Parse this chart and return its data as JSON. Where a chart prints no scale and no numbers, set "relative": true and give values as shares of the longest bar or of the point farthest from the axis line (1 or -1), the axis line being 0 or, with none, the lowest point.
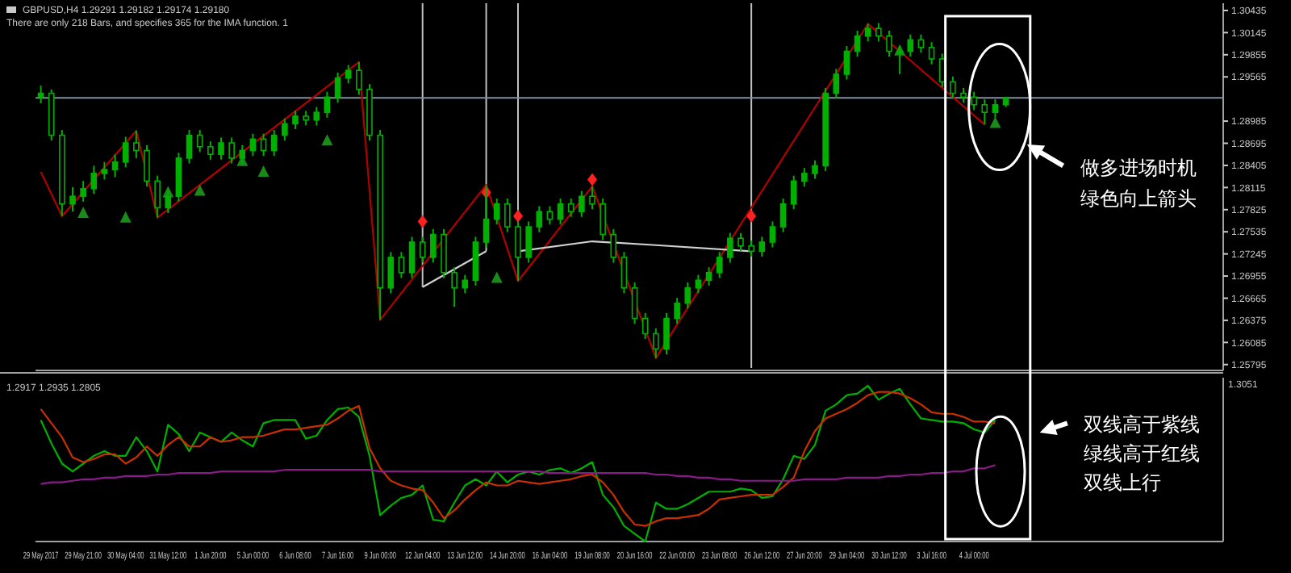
{
  "chart_data": [
    {
      "type": "candlestick",
      "color": "#00b000",
      "annotations": [
        "GBPUSD,H4 1.29291 1.29182 1.29174 1.29180",
        "There are only 218 Bars, and specifies 365 for the IMA function. 1",
        "做多进场时机",
        "绿色向上箭头"
      ],
      "categories": [
        null,
        null,
        null,
        null,
        null,
        null,
        null,
        null,
        null,
        null,
        null,
        null,
        null,
        null,
        null,
        null,
        null,
        null,
        null,
        null,
        null,
        null,
        null,
        null,
        null,
        null,
        null,
        null,
        null,
        null,
        null,
        null,
        null,
        null,
        null,
        null,
        null,
        null,
        null,
        null,
        null,
        null,
        null,
        null,
        null,
        null,
        null,
        null,
        null,
        null,
        null,
        null,
        null,
        null,
        null,
        null,
        null,
        null,
        null,
        null,
        null,
        null,
        null,
        null,
        null,
        null,
        null,
        null,
        null,
        null,
        null,
        null,
        null,
        null,
        null,
        null,
        null,
        null,
        null,
        null,
        null,
        null,
        null,
        null,
        null,
        null,
        null,
        null,
        null,
        null,
        null,
        null,
        null,
        null,
        null,
        null,
        null,
        null,
        null,
        null,
        null,
        null,
        null,
        null,
        null,
        null,
        null,
        null,
        null,
        null,
        null,
        null
      ],
      "ohlc": [
        [
          1.293,
          1.2945,
          1.2922,
          1.2935
        ],
        [
          1.2935,
          1.294,
          1.2873,
          1.288
        ],
        [
          1.288,
          1.2887,
          1.2774,
          1.279
        ],
        [
          1.279,
          1.2812,
          1.278,
          1.28
        ],
        [
          1.28,
          1.282,
          1.2793,
          1.281
        ],
        [
          1.281,
          1.284,
          1.2803,
          1.283
        ],
        [
          1.283,
          1.2845,
          1.2822,
          1.2835
        ],
        [
          1.2835,
          1.2855,
          1.2825,
          1.2845
        ],
        [
          1.2845,
          1.2878,
          1.2838,
          1.287
        ],
        [
          1.287,
          1.2886,
          1.285,
          1.286
        ],
        [
          1.286,
          1.2867,
          1.2813,
          1.282
        ],
        [
          1.282,
          1.2827,
          1.2772,
          1.2785
        ],
        [
          1.2785,
          1.2808,
          1.2778,
          1.28
        ],
        [
          1.28,
          1.2857,
          1.2793,
          1.285
        ],
        [
          1.285,
          1.2887,
          1.2843,
          1.288
        ],
        [
          1.288,
          1.2887,
          1.2858,
          1.2865
        ],
        [
          1.2865,
          1.2872,
          1.2848,
          1.2855
        ],
        [
          1.2855,
          1.2877,
          1.2848,
          1.287
        ],
        [
          1.287,
          1.2877,
          1.2843,
          1.285
        ],
        [
          1.285,
          1.2867,
          1.2843,
          1.286
        ],
        [
          1.286,
          1.2882,
          1.2853,
          1.2875
        ],
        [
          1.2875,
          1.2882,
          1.2853,
          1.286
        ],
        [
          1.286,
          1.2887,
          1.2853,
          1.288
        ],
        [
          1.288,
          1.2902,
          1.2873,
          1.2895
        ],
        [
          1.2895,
          1.2912,
          1.2888,
          1.2905
        ],
        [
          1.2905,
          1.2912,
          1.2893,
          1.29
        ],
        [
          1.29,
          1.2917,
          1.2893,
          1.291
        ],
        [
          1.291,
          1.2937,
          1.2903,
          1.293
        ],
        [
          1.293,
          1.2962,
          1.2923,
          1.2955
        ],
        [
          1.2955,
          1.2972,
          1.2948,
          1.2965
        ],
        [
          1.2965,
          1.2976,
          1.2933,
          1.294
        ],
        [
          1.294,
          1.2947,
          1.2873,
          1.288
        ],
        [
          1.288,
          1.2887,
          1.2638,
          1.268
        ],
        [
          1.268,
          1.2727,
          1.2673,
          1.272
        ],
        [
          1.272,
          1.2727,
          1.2693,
          1.27
        ],
        [
          1.27,
          1.2747,
          1.2693,
          1.274
        ],
        [
          1.274,
          1.2747,
          1.2713,
          1.272
        ],
        [
          1.272,
          1.2757,
          1.2713,
          1.275
        ],
        [
          1.275,
          1.2757,
          1.2693,
          1.27
        ],
        [
          1.27,
          1.2707,
          1.2655,
          1.268
        ],
        [
          1.268,
          1.2697,
          1.2673,
          1.269
        ],
        [
          1.269,
          1.2747,
          1.2683,
          1.274
        ],
        [
          1.274,
          1.2815,
          1.2733,
          1.277
        ],
        [
          1.277,
          1.2797,
          1.2763,
          1.279
        ],
        [
          1.279,
          1.2797,
          1.2753,
          1.276
        ],
        [
          1.276,
          1.2767,
          1.2689,
          1.272
        ],
        [
          1.272,
          1.2767,
          1.2713,
          1.276
        ],
        [
          1.276,
          1.2787,
          1.2753,
          1.278
        ],
        [
          1.278,
          1.2787,
          1.2763,
          1.277
        ],
        [
          1.277,
          1.2797,
          1.2763,
          1.279
        ],
        [
          1.279,
          1.2797,
          1.2773,
          1.278
        ],
        [
          1.278,
          1.2807,
          1.2773,
          1.28
        ],
        [
          1.28,
          1.2813,
          1.2783,
          1.279
        ],
        [
          1.279,
          1.2797,
          1.2743,
          1.275
        ],
        [
          1.275,
          1.2757,
          1.2713,
          1.272
        ],
        [
          1.272,
          1.2727,
          1.2673,
          1.268
        ],
        [
          1.268,
          1.2687,
          1.2633,
          1.264
        ],
        [
          1.264,
          1.2647,
          1.2613,
          1.262
        ],
        [
          1.262,
          1.2627,
          1.2588,
          1.26
        ],
        [
          1.26,
          1.2647,
          1.2593,
          1.264
        ],
        [
          1.264,
          1.2667,
          1.2633,
          1.266
        ],
        [
          1.266,
          1.2687,
          1.2653,
          1.268
        ],
        [
          1.268,
          1.2697,
          1.2673,
          1.269
        ],
        [
          1.269,
          1.2707,
          1.2683,
          1.27
        ],
        [
          1.27,
          1.2727,
          1.2693,
          1.272
        ],
        [
          1.272,
          1.2752,
          1.2713,
          1.2745
        ],
        [
          1.2745,
          1.2752,
          1.2728,
          1.2735
        ],
        [
          1.2735,
          1.2742,
          1.2721,
          1.2728
        ],
        [
          1.2728,
          1.2747,
          1.2721,
          1.274
        ],
        [
          1.274,
          1.2767,
          1.2733,
          1.276
        ],
        [
          1.276,
          1.2797,
          1.2753,
          1.279
        ],
        [
          1.279,
          1.2827,
          1.2783,
          1.282
        ],
        [
          1.282,
          1.2837,
          1.2813,
          1.283
        ],
        [
          1.283,
          1.2847,
          1.2823,
          1.284
        ],
        [
          1.284,
          1.2942,
          1.2833,
          1.2935
        ],
        [
          1.2935,
          1.2967,
          1.2928,
          1.296
        ],
        [
          1.296,
          1.2997,
          1.2953,
          1.299
        ],
        [
          1.299,
          1.3017,
          1.2983,
          1.301
        ],
        [
          1.301,
          1.3026,
          1.3003,
          1.302
        ],
        [
          1.302,
          1.3027,
          1.3003,
          1.301
        ],
        [
          1.301,
          1.3017,
          1.2983,
          1.299
        ],
        [
          1.299,
          1.2997,
          1.296,
          1.299
        ],
        [
          1.299,
          1.3012,
          1.2983,
          1.3005
        ],
        [
          1.3005,
          1.3012,
          1.2988,
          1.2995
        ],
        [
          1.2995,
          1.3002,
          1.2973,
          1.298
        ],
        [
          1.298,
          1.2987,
          1.2943,
          1.295
        ],
        [
          1.295,
          1.2957,
          1.2928,
          1.2935
        ],
        [
          1.2935,
          1.2942,
          1.2923,
          1.293
        ],
        [
          1.293,
          1.2937,
          1.2913,
          1.292
        ],
        [
          1.292,
          1.2927,
          1.2894,
          1.291
        ],
        [
          1.291,
          1.2927,
          1.2903,
          1.292
        ],
        [
          1.292,
          1.293,
          1.2917,
          1.2929
        ],
        null,
        null,
        null,
        null,
        null,
        null,
        null,
        null,
        null,
        null,
        null,
        null,
        null,
        null,
        null,
        null,
        null,
        null,
        null,
        null
      ],
      "series": [
        {
          "type": "line",
          "color": "#b00000",
          "values": [
            1.2832,
            null,
            1.2774,
            null,
            null,
            null,
            null,
            null,
            null,
            1.2886,
            null,
            1.2772,
            null,
            null,
            null,
            null,
            null,
            null,
            null,
            null,
            null,
            null,
            null,
            null,
            null,
            null,
            null,
            null,
            null,
            null,
            1.2976,
            null,
            1.2638,
            null,
            null,
            null,
            null,
            null,
            null,
            null,
            null,
            null,
            1.2815,
            null,
            null,
            1.2689,
            null,
            null,
            null,
            null,
            null,
            null,
            1.2813,
            null,
            null,
            null,
            null,
            null,
            1.2588,
            null,
            null,
            null,
            null,
            null,
            null,
            null,
            null,
            null,
            null,
            null,
            null,
            null,
            null,
            null,
            null,
            null,
            null,
            null,
            1.3026,
            null,
            null,
            null,
            null,
            null,
            null,
            null,
            null,
            null,
            null,
            1.2894,
            null,
            null,
            null,
            null,
            null,
            null,
            null,
            null,
            null,
            null,
            null,
            null,
            null,
            null,
            null,
            null,
            null,
            null,
            null,
            null,
            null,
            null
          ]
        },
        {
          "type": "line",
          "color": "#d0d0d0",
          "values": [
            null,
            null,
            null,
            null,
            null,
            null,
            null,
            null,
            null,
            null,
            null,
            null,
            null,
            null,
            null,
            null,
            null,
            null,
            null,
            null,
            null,
            null,
            null,
            null,
            null,
            null,
            null,
            null,
            null,
            null,
            null,
            null,
            null,
            null,
            null,
            null,
            1.2681,
            null,
            null,
            null,
            null,
            null,
            1.2728,
            null,
            null,
            null,
            null,
            null,
            null,
            null,
            null,
            null,
            null,
            null,
            null,
            null,
            null,
            null,
            null,
            null,
            null,
            null,
            null,
            null,
            null,
            null,
            null,
            null,
            null,
            null,
            null,
            null,
            null,
            null,
            null,
            null,
            null,
            null,
            null,
            null,
            null,
            null,
            null,
            null,
            null,
            null,
            null,
            null,
            null,
            null,
            null,
            null,
            null,
            null,
            null,
            null,
            null,
            null,
            null,
            null,
            null,
            null,
            null,
            null,
            null,
            null,
            null,
            null,
            null,
            null,
            null,
            null
          ]
        },
        {
          "type": "line",
          "color": "#d0d0d0",
          "values": [
            null,
            null,
            null,
            null,
            null,
            null,
            null,
            null,
            null,
            null,
            null,
            null,
            null,
            null,
            null,
            null,
            null,
            null,
            null,
            null,
            null,
            null,
            null,
            null,
            null,
            null,
            null,
            null,
            null,
            null,
            null,
            null,
            null,
            null,
            null,
            null,
            null,
            null,
            null,
            null,
            null,
            null,
            null,
            null,
            null,
            1.2728,
            null,
            null,
            null,
            null,
            null,
            null,
            1.2741,
            null,
            null,
            null,
            null,
            null,
            1.2736,
            null,
            null,
            null,
            null,
            null,
            null,
            null,
            null,
            1.2728,
            null,
            null,
            null,
            null,
            null,
            null,
            null,
            null,
            null,
            null,
            null,
            null,
            null,
            null,
            null,
            null,
            null,
            null,
            null,
            null,
            null,
            null,
            null,
            null,
            null,
            null,
            null,
            null,
            null,
            null,
            null,
            null,
            null,
            null,
            null,
            null,
            null,
            null,
            null,
            null,
            null,
            null,
            null,
            null
          ]
        },
        {
          "type": "scatter",
          "marker": "triangle",
          "color": "#1a8a1a",
          "values": [
            null,
            null,
            null,
            null,
            1.2778,
            null,
            null,
            null,
            1.2772,
            null,
            null,
            null,
            1.2805,
            null,
            null,
            1.2807,
            null,
            null,
            null,
            1.2846,
            null,
            1.2832,
            null,
            null,
            null,
            null,
            null,
            1.2873,
            null,
            null,
            null,
            null,
            null,
            null,
            null,
            null,
            null,
            null,
            null,
            null,
            null,
            null,
            null,
            1.2693,
            null,
            null,
            null,
            null,
            null,
            null,
            null,
            null,
            null,
            null,
            null,
            null,
            null,
            null,
            null,
            null,
            null,
            null,
            null,
            null,
            null,
            null,
            null,
            null,
            null,
            null,
            null,
            null,
            null,
            null,
            null,
            null,
            null,
            null,
            null,
            null,
            null,
            1.2991,
            null,
            null,
            null,
            null,
            null,
            null,
            null,
            null,
            1.2896,
            null,
            null,
            null,
            null,
            null,
            null,
            null,
            null,
            null,
            null,
            null,
            null,
            null,
            null,
            null,
            null,
            null,
            null,
            null,
            null,
            null
          ]
        },
        {
          "type": "scatter",
          "marker": "diamond",
          "color": "#ff2020",
          "values": [
            null,
            null,
            null,
            null,
            null,
            null,
            null,
            null,
            null,
            null,
            null,
            null,
            null,
            null,
            null,
            null,
            null,
            null,
            null,
            null,
            null,
            null,
            null,
            null,
            null,
            null,
            null,
            null,
            null,
            null,
            null,
            null,
            null,
            null,
            null,
            null,
            1.2767,
            null,
            null,
            null,
            null,
            null,
            1.2805,
            null,
            null,
            1.2774,
            null,
            null,
            null,
            null,
            null,
            null,
            1.2822,
            null,
            null,
            null,
            null,
            null,
            null,
            null,
            null,
            null,
            null,
            null,
            null,
            null,
            null,
            1.2774,
            null,
            null,
            null,
            null,
            null,
            null,
            null,
            null,
            null,
            null,
            null,
            null,
            null,
            null,
            null,
            null,
            null,
            null,
            null,
            null,
            null,
            null,
            null,
            null,
            null,
            null,
            null,
            null,
            null,
            null,
            null,
            null,
            null,
            null,
            null,
            null,
            null,
            null,
            null,
            null,
            null,
            null,
            null,
            null
          ]
        }
      ],
      "ref_lines": [
        {
          "axis": "y",
          "value": 1.2929,
          "color": "#8090a0"
        }
      ],
      "ylim": [
        1.2575,
        1.3053
      ],
      "yticks": [
        1.30435,
        1.30145,
        1.29855,
        1.29565,
        1.28985,
        1.28695,
        1.28405,
        1.28115,
        1.27825,
        1.27535,
        1.27245,
        1.26955,
        1.26665,
        1.26375,
        1.26085,
        1.25795
      ],
      "tick_labels": "y"
    },
    {
      "type": "line",
      "relative": true,
      "annotations": [
        "1.2917 1.2935 1.2805",
        "1.3051",
        "双线高于紫线",
        "绿线高于红线",
        "双线上行"
      ],
      "categories": [
        "29 May 2017",
        null,
        null,
        null,
        "29 May 21:00",
        null,
        null,
        null,
        "30 May 04:00",
        null,
        null,
        null,
        "31 May 12:00",
        null,
        null,
        null,
        "1 Jun 20:00",
        null,
        null,
        null,
        "5 Jun 00:00",
        null,
        null,
        null,
        "6 Jun 08:00",
        null,
        null,
        null,
        "7 Jun 16:00",
        null,
        null,
        null,
        "9 Jun 00:00",
        null,
        null,
        null,
        "12 Jun 04:00",
        null,
        null,
        null,
        "13 Jun 12:00",
        null,
        null,
        null,
        "14 Jun 20:00",
        null,
        null,
        null,
        "16 Jun 04:00",
        null,
        null,
        null,
        "19 Jun 08:00",
        null,
        null,
        null,
        "20 Jun 16:00",
        null,
        null,
        null,
        "22 Jun 00:00",
        null,
        null,
        null,
        "23 Jun 08:00",
        null,
        null,
        null,
        "26 Jun 12:00",
        null,
        null,
        null,
        "27 Jun 20:00",
        null,
        null,
        null,
        "29 Jun 04:00",
        null,
        null,
        null,
        "30 Jun 12:00",
        null,
        null,
        null,
        "3 Jul 16:00",
        null,
        null,
        null,
        "4 Jul 00:00",
        null,
        null,
        null,
        null,
        null,
        null,
        null,
        null,
        null,
        null,
        null,
        null,
        null,
        null,
        null,
        null,
        null,
        null,
        null,
        null,
        null,
        null,
        null
      ],
      "series": [
        {
          "color": "#00b000",
          "values": [
            0.78,
            0.63,
            0.5,
            0.45,
            0.5,
            0.55,
            0.58,
            0.55,
            0.55,
            0.67,
            0.58,
            0.45,
            0.75,
            0.69,
            0.58,
            0.7,
            0.67,
            0.64,
            0.7,
            0.65,
            0.61,
            0.76,
            0.78,
            0.78,
            0.78,
            0.66,
            0.68,
            0.78,
            0.85,
            0.86,
            0.8,
            0.55,
            0.17,
            0.23,
            0.28,
            0.3,
            0.36,
            0.14,
            0.13,
            0.25,
            0.36,
            0.4,
            0.36,
            0.45,
            0.38,
            0.43,
            0.45,
            0.43,
            0.46,
            0.47,
            0.44,
            0.47,
            0.51,
            0.3,
            0.22,
            0.1,
            0.05,
            0,
            0.25,
            0.21,
            0.21,
            0.24,
            0.28,
            0.32,
            0.32,
            0.32,
            0.34,
            0.33,
            0.28,
            0.29,
            0.4,
            0.55,
            0.53,
            0.62,
            0.84,
            0.88,
            0.94,
            0.95,
            1.0,
            0.91,
            0.95,
            0.98,
            0.88,
            0.79,
            0.78,
            0.77,
            0.77,
            0.76,
            0.72,
            0.7,
            0.78,
            null,
            null,
            null,
            null,
            null,
            null,
            null,
            null,
            null,
            null,
            null,
            null,
            null,
            null,
            null,
            null,
            null,
            null,
            null,
            null,
            null
          ]
        },
        {
          "color": "#c83000",
          "values": [
            0.85,
            0.76,
            0.67,
            0.54,
            0.51,
            0.53,
            0.56,
            0.56,
            0.5,
            0.54,
            0.61,
            0.55,
            0.62,
            0.67,
            0.61,
            0.61,
            0.67,
            0.64,
            0.65,
            0.67,
            0.67,
            0.68,
            0.7,
            0.72,
            0.72,
            0.73,
            0.74,
            0.75,
            0.79,
            0.84,
            0.87,
            0.6,
            0.47,
            0.39,
            0.36,
            0.34,
            0.33,
            0.25,
            0.15,
            0.2,
            0.27,
            0.33,
            0.38,
            0.36,
            0.36,
            0.39,
            0.38,
            0.37,
            0.38,
            0.39,
            0.4,
            0.42,
            0.43,
            0.38,
            0.3,
            0.19,
            0.11,
            0.1,
            0.13,
            0.15,
            0.15,
            0.16,
            0.17,
            0.21,
            0.27,
            0.28,
            0.29,
            0.3,
            0.3,
            0.3,
            0.35,
            0.41,
            0.58,
            0.71,
            0.79,
            0.82,
            0.85,
            0.89,
            0.94,
            0.96,
            0.96,
            0.95,
            0.92,
            0.88,
            0.83,
            0.82,
            0.82,
            0.8,
            0.77,
            0.77,
            0.76,
            null,
            null,
            null,
            null,
            null,
            null,
            null,
            null,
            null,
            null,
            null,
            null,
            null,
            null,
            null,
            null,
            null,
            null,
            null,
            null,
            null
          ]
        },
        {
          "color": "#8a1a8a",
          "values": [
            0.37,
            0.38,
            0.38,
            0.39,
            0.4,
            0.4,
            0.41,
            0.41,
            0.42,
            0.42,
            0.42,
            0.43,
            0.43,
            0.44,
            0.44,
            0.44,
            0.44,
            0.45,
            0.45,
            0.45,
            0.45,
            0.45,
            0.45,
            0.46,
            0.46,
            0.46,
            0.46,
            0.46,
            0.46,
            0.46,
            0.46,
            0.46,
            0.45,
            0.45,
            0.45,
            0.45,
            0.45,
            0.45,
            0.45,
            0.45,
            0.45,
            0.45,
            0.45,
            0.45,
            0.45,
            0.45,
            0.45,
            0.45,
            0.44,
            0.44,
            0.44,
            0.44,
            0.44,
            0.44,
            0.44,
            0.44,
            0.44,
            0.44,
            0.43,
            0.43,
            0.42,
            0.42,
            0.41,
            0.41,
            0.4,
            0.4,
            0.39,
            0.39,
            0.39,
            0.39,
            0.39,
            0.39,
            0.4,
            0.4,
            0.4,
            0.4,
            0.41,
            0.41,
            0.41,
            0.41,
            0.42,
            0.42,
            0.43,
            0.43,
            0.44,
            0.44,
            0.45,
            0.45,
            0.47,
            0.47,
            0.49,
            null,
            null,
            null,
            null,
            null,
            null,
            null,
            null,
            null,
            null,
            null,
            null,
            null,
            null,
            null,
            null,
            null,
            null,
            null,
            null,
            null
          ]
        }
      ],
      "tick_labels": "x"
    }
  ]
}
